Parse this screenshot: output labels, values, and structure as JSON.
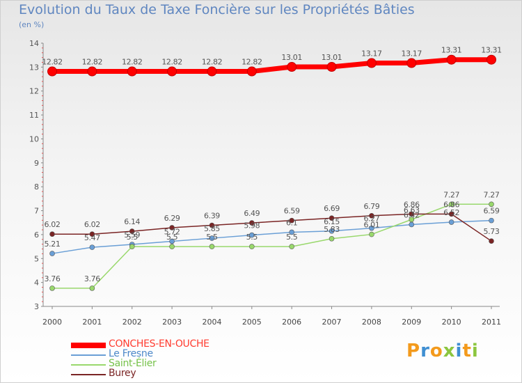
{
  "header": {
    "title": "Evolution du Taux de Taxe Foncière sur les Propriétés Bâties",
    "unit": "(en %)"
  },
  "logo": {
    "text": "Proxiti"
  },
  "chart_data": {
    "type": "line",
    "title": "Evolution du Taux de Taxe Foncière sur les Propriétés Bâties",
    "ylabel": "(en %)",
    "xlabel": "",
    "ylim": [
      3,
      14
    ],
    "yticks": [
      "3",
      "4",
      "5",
      "6",
      "7",
      "8",
      "9",
      "10",
      "11",
      "12",
      "13",
      "14"
    ],
    "categories": [
      "2000",
      "2001",
      "2002",
      "2003",
      "2004",
      "2005",
      "2006",
      "2007",
      "2008",
      "2009",
      "2010",
      "2011"
    ],
    "grid": false,
    "legend": "bottom-left",
    "series": [
      {
        "name": "CONCHES-EN-OUCHE",
        "color": "#ff0000",
        "values": [
          12.82,
          12.82,
          12.82,
          12.82,
          12.82,
          12.82,
          13.01,
          13.01,
          13.17,
          13.17,
          13.31,
          13.31
        ],
        "labels": [
          "12.82",
          "12.82",
          "12.82",
          "12.82",
          "12.82",
          "12.82",
          "13.01",
          "13.01",
          "13.17",
          "13.17",
          "13.31",
          "13.31"
        ]
      },
      {
        "name": "Le Fresne",
        "color": "#6a9fd6",
        "values": [
          5.21,
          5.47,
          5.59,
          5.72,
          5.85,
          5.98,
          6.1,
          6.15,
          6.27,
          6.42,
          6.52,
          6.59
        ],
        "labels": [
          "5.21",
          "5.47",
          "5.59",
          "5.72",
          "5.85",
          "5.98",
          "6.1",
          "6.15",
          "6.27",
          "6.42",
          "6.52",
          "6.59"
        ]
      },
      {
        "name": "Saint-Élier",
        "color": "#99d86c",
        "values": [
          3.76,
          3.76,
          5.5,
          5.5,
          5.5,
          5.5,
          5.5,
          5.83,
          6.01,
          6.63,
          7.27,
          7.27
        ],
        "labels": [
          "3.76",
          "3.76",
          "5.5",
          "5.5",
          "5.5",
          "5.5",
          "5.5",
          "5.83",
          "6.01",
          "6.63",
          "7.27",
          "7.27"
        ]
      },
      {
        "name": "Burey",
        "color": "#7a2424",
        "values": [
          6.02,
          6.02,
          6.14,
          6.29,
          6.39,
          6.49,
          6.59,
          6.69,
          6.79,
          6.86,
          6.86,
          5.73
        ],
        "labels": [
          "6.02",
          "6.02",
          "6.14",
          "6.29",
          "6.39",
          "6.49",
          "6.59",
          "6.69",
          "6.79",
          "6.86",
          "6.86",
          "5.73"
        ]
      }
    ]
  }
}
